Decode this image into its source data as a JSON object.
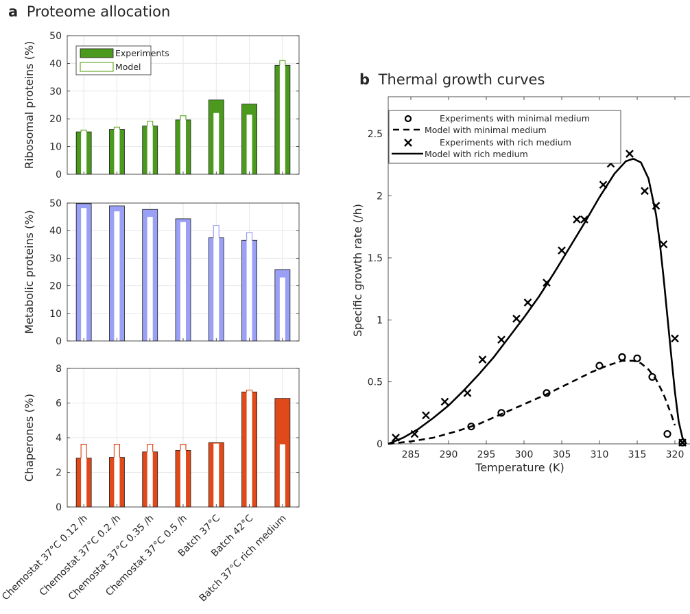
{
  "panel_a": {
    "letter": "a",
    "title": "Proteome allocation",
    "categories": [
      "Chemostat 37°C 0.12 /h",
      "Chemostat 37°C 0.2 /h",
      "Chemostat 37°C 0.35 /h",
      "Chemostat 37°C 0.5 /h",
      "Batch 37°C",
      "Batch 42°C",
      "Batch 37°C rich medium"
    ]
  },
  "panel_b": {
    "letter": "b",
    "title": "Thermal growth curves"
  },
  "chart_data": [
    {
      "type": "bar",
      "id": "ribosomal",
      "ylabel": "Ribosomal proteins (%)",
      "ylim": [
        0,
        50
      ],
      "yticks": [
        0,
        10,
        20,
        30,
        40,
        50
      ],
      "grid": true,
      "legend": {
        "placement": "top-left",
        "entries": [
          "Experiments",
          "Model"
        ]
      },
      "colors": {
        "fill": "#4b9a1e",
        "model": "#6aab2e",
        "inner": "#ffffff"
      },
      "series": [
        {
          "name": "Experiments",
          "values": [
            15.3,
            16.2,
            17.4,
            19.6,
            26.8,
            25.3,
            39.3
          ]
        },
        {
          "name": "Model",
          "values": [
            15.9,
            17.0,
            19.1,
            21.1,
            22.1,
            21.5,
            41.0
          ]
        }
      ]
    },
    {
      "type": "bar",
      "id": "metabolic",
      "ylabel": "Metabolic proteins (%)",
      "ylim": [
        0,
        50
      ],
      "yticks": [
        0,
        10,
        20,
        30,
        40,
        50
      ],
      "grid": true,
      "colors": {
        "fill": "#9aa0f5",
        "model": "#9aa0f5",
        "inner": "#ffffff"
      },
      "series": [
        {
          "name": "Experiments",
          "values": [
            49.8,
            49.0,
            47.7,
            44.3,
            37.4,
            36.5,
            25.9
          ]
        },
        {
          "name": "Model",
          "values": [
            48.2,
            47.0,
            45.0,
            43.1,
            41.9,
            39.3,
            23.0
          ]
        }
      ]
    },
    {
      "type": "bar",
      "id": "chaperones",
      "ylabel": "Chaperones (%)",
      "ylim": [
        0,
        8
      ],
      "yticks": [
        0,
        2,
        4,
        6,
        8
      ],
      "grid": true,
      "colors": {
        "fill": "#e04a1a",
        "model": "#e04a1a",
        "inner": "#ffffff"
      },
      "series": [
        {
          "name": "Experiments",
          "values": [
            2.82,
            2.87,
            3.18,
            3.27,
            3.72,
            6.64,
            6.27
          ]
        },
        {
          "name": "Model",
          "values": [
            3.62,
            3.62,
            3.62,
            3.62,
            3.66,
            6.75,
            3.62
          ]
        }
      ]
    },
    {
      "type": "line",
      "id": "thermal",
      "xlabel": "Temperature (K)",
      "ylabel": "Specific growth rate (/h)",
      "xlim": [
        282,
        322
      ],
      "ylim": [
        0,
        2.8
      ],
      "xticks": [
        285,
        290,
        295,
        300,
        305,
        310,
        315,
        320
      ],
      "yticks": [
        0,
        0.5,
        1,
        1.5,
        2,
        2.5
      ],
      "ytick_labels": [
        "0",
        "0.5",
        "1",
        "1.5",
        "2",
        "2.5"
      ],
      "grid": false,
      "legend": {
        "placement": "top-left",
        "entries": [
          "Experiments with minimal medium",
          "Model with minimal medium",
          "Experiments with rich medium",
          "Model with rich medium"
        ]
      },
      "series": [
        {
          "name": "Experiments with minimal medium",
          "marker": "circle",
          "x": [
            293.0,
            297.0,
            303.0,
            310.0,
            313.0,
            315.0,
            317.0,
            319.0,
            321.0
          ],
          "y": [
            0.14,
            0.25,
            0.41,
            0.63,
            0.7,
            0.69,
            0.54,
            0.08,
            0.01
          ]
        },
        {
          "name": "Model with minimal medium",
          "line": "dashed",
          "x": [
            282.0,
            285.0,
            288.0,
            291.0,
            294.0,
            297.0,
            300.0,
            303.0,
            306.0,
            309.0,
            311.0,
            313.0,
            314.5,
            315.5,
            316.5,
            317.5,
            318.5,
            319.0,
            319.5,
            320.0
          ],
          "y": [
            0.0,
            0.02,
            0.05,
            0.1,
            0.16,
            0.24,
            0.32,
            0.4,
            0.49,
            0.58,
            0.63,
            0.67,
            0.67,
            0.65,
            0.6,
            0.52,
            0.4,
            0.32,
            0.24,
            0.15
          ]
        },
        {
          "name": "Experiments with rich medium",
          "marker": "x",
          "x": [
            283.0,
            285.5,
            287.0,
            289.5,
            292.5,
            294.5,
            297.0,
            299.0,
            300.5,
            303.0,
            305.0,
            307.0,
            308.0,
            310.5,
            311.5,
            314.0,
            316.0,
            317.5,
            318.5,
            320.0,
            321.0
          ],
          "y": [
            0.05,
            0.08,
            0.23,
            0.34,
            0.41,
            0.68,
            0.84,
            1.01,
            1.14,
            1.3,
            1.56,
            1.81,
            1.81,
            2.09,
            2.26,
            2.34,
            2.04,
            1.92,
            1.61,
            0.85,
            0.01
          ]
        },
        {
          "name": "Model with rich medium",
          "line": "solid",
          "x": [
            282.0,
            284.0,
            286.0,
            288.0,
            290.0,
            292.0,
            294.0,
            296.0,
            298.0,
            300.0,
            302.0,
            304.0,
            306.0,
            308.0,
            310.0,
            312.0,
            313.5,
            314.5,
            315.5,
            316.5,
            317.5,
            318.0,
            318.5,
            319.0,
            319.5,
            320.0,
            320.5,
            321.0,
            321.5
          ],
          "y": [
            0.0,
            0.05,
            0.12,
            0.21,
            0.31,
            0.43,
            0.56,
            0.7,
            0.86,
            1.02,
            1.19,
            1.38,
            1.58,
            1.78,
            1.99,
            2.18,
            2.28,
            2.3,
            2.27,
            2.14,
            1.85,
            1.62,
            1.34,
            1.03,
            0.72,
            0.42,
            0.18,
            0.05,
            0.0
          ]
        }
      ]
    }
  ]
}
